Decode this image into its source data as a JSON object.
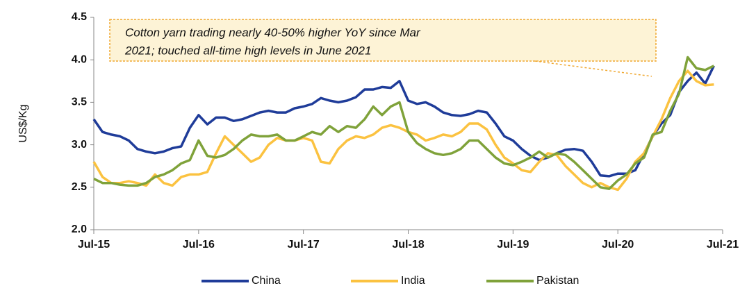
{
  "chart_data": {
    "type": "line",
    "ylabel": "US$/Kg",
    "annotation": [
      "Cotton yarn trading nearly  40-50% higher YoY since Mar",
      "2021; touched all-time high levels in June 2021"
    ],
    "categories": [
      "Jul-15",
      null,
      null,
      null,
      null,
      null,
      null,
      null,
      null,
      null,
      null,
      null,
      "Jul-16",
      null,
      null,
      null,
      null,
      null,
      null,
      null,
      null,
      null,
      null,
      null,
      "Jul-17",
      null,
      null,
      null,
      null,
      null,
      null,
      null,
      null,
      null,
      null,
      null,
      "Jul-18",
      null,
      null,
      null,
      null,
      null,
      null,
      null,
      null,
      null,
      null,
      null,
      "Jul-19",
      null,
      null,
      null,
      null,
      null,
      null,
      null,
      null,
      null,
      null,
      null,
      "Jul-20",
      null,
      null,
      null,
      null,
      null,
      null,
      null,
      null,
      null,
      null,
      null,
      "Jul-21"
    ],
    "ylim": [
      2.0,
      4.5
    ],
    "yticks": [
      {
        "value": 2.0,
        "label": "2.0"
      },
      2.5,
      {
        "value": 3.0,
        "label": "3.0"
      },
      3.5,
      {
        "value": 4.0,
        "label": "4.0"
      },
      4.5
    ],
    "series": [
      {
        "name": "China",
        "color": "#1f3c99",
        "values": [
          3.3,
          3.15,
          3.12,
          3.1,
          3.05,
          2.95,
          2.92,
          2.9,
          2.92,
          2.96,
          2.98,
          3.2,
          3.35,
          3.24,
          3.32,
          3.32,
          3.28,
          3.3,
          3.34,
          3.38,
          3.4,
          3.38,
          3.38,
          3.43,
          3.45,
          3.48,
          3.55,
          3.52,
          3.5,
          3.52,
          3.56,
          3.65,
          3.65,
          3.68,
          3.67,
          3.75,
          3.52,
          3.48,
          3.5,
          3.45,
          3.38,
          3.35,
          3.34,
          3.36,
          3.4,
          3.38,
          3.25,
          3.1,
          3.05,
          2.95,
          2.87,
          2.82,
          2.85,
          2.9,
          2.94,
          2.95,
          2.93,
          2.8,
          2.64,
          2.63,
          2.66,
          2.66,
          2.7,
          2.9,
          3.1,
          3.25,
          3.35,
          3.62,
          3.75,
          3.85,
          3.72,
          3.93,
          null
        ]
      },
      {
        "name": "India",
        "color": "#fbc240",
        "values": [
          2.8,
          2.62,
          2.55,
          2.55,
          2.57,
          2.55,
          2.52,
          2.65,
          2.55,
          2.52,
          2.62,
          2.65,
          2.65,
          2.68,
          2.9,
          3.1,
          3.0,
          2.9,
          2.8,
          2.85,
          3.0,
          3.08,
          3.05,
          3.05,
          3.08,
          3.05,
          2.8,
          2.78,
          2.95,
          3.05,
          3.1,
          3.08,
          3.12,
          3.2,
          3.23,
          3.2,
          3.15,
          3.12,
          3.05,
          3.08,
          3.12,
          3.1,
          3.15,
          3.25,
          3.25,
          3.18,
          3.0,
          2.85,
          2.78,
          2.7,
          2.68,
          2.8,
          2.9,
          2.88,
          2.75,
          2.65,
          2.55,
          2.5,
          2.55,
          2.5,
          2.47,
          2.6,
          2.8,
          2.9,
          3.1,
          3.3,
          3.55,
          3.75,
          3.87,
          3.75,
          3.7,
          3.71,
          null
        ]
      },
      {
        "name": "Pakistan",
        "color": "#7fa23a",
        "values": [
          2.6,
          2.55,
          2.55,
          2.53,
          2.52,
          2.52,
          2.55,
          2.62,
          2.65,
          2.7,
          2.78,
          2.82,
          3.05,
          2.87,
          2.85,
          2.88,
          2.95,
          3.05,
          3.12,
          3.1,
          3.1,
          3.12,
          3.05,
          3.05,
          3.1,
          3.15,
          3.12,
          3.22,
          3.15,
          3.22,
          3.2,
          3.3,
          3.45,
          3.35,
          3.45,
          3.5,
          3.15,
          3.02,
          2.95,
          2.9,
          2.88,
          2.9,
          2.95,
          3.05,
          3.05,
          2.95,
          2.85,
          2.78,
          2.76,
          2.8,
          2.85,
          2.92,
          2.85,
          2.9,
          2.88,
          2.8,
          2.7,
          2.6,
          2.5,
          2.48,
          2.58,
          2.65,
          2.78,
          2.85,
          3.12,
          3.15,
          3.4,
          3.6,
          4.03,
          3.9,
          3.88,
          3.93,
          null
        ]
      }
    ]
  }
}
